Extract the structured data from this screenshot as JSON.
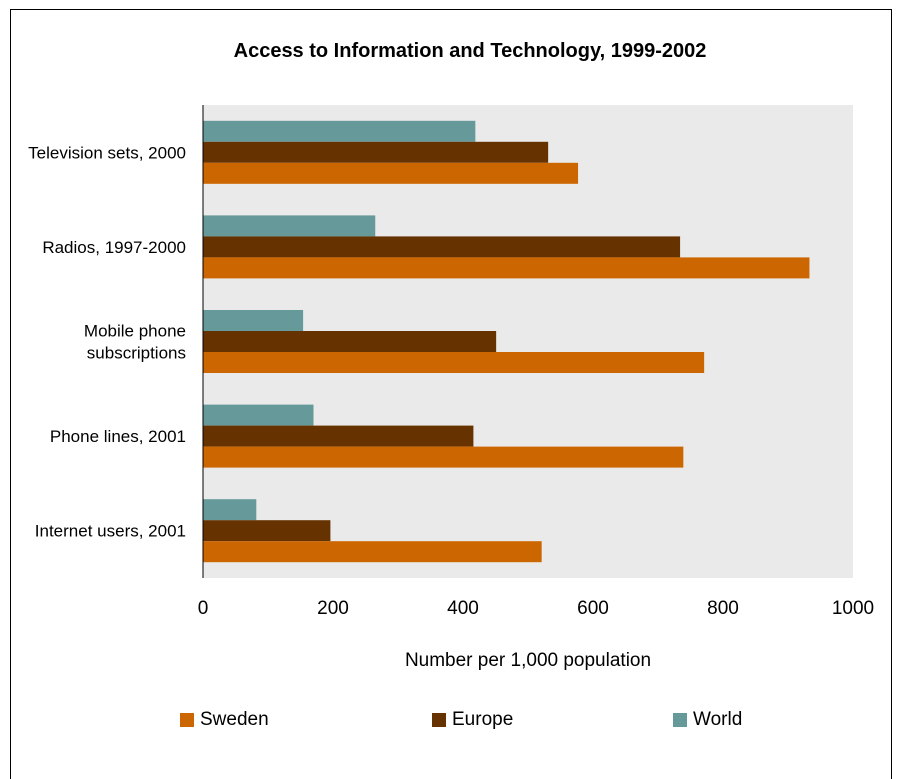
{
  "chart_data": {
    "type": "bar",
    "orientation": "horizontal",
    "title": "Access to Information and Technology, 1999-2002",
    "xlabel": "Number per 1,000 population",
    "ylabel": "",
    "xlim": [
      0,
      1000
    ],
    "xticks": [
      "0",
      "200",
      "400",
      "600",
      "800",
      "1000"
    ],
    "categories": [
      [
        "Television sets, 2000"
      ],
      [
        "Radios, 1997-2000"
      ],
      [
        "Mobile phone",
        "subscriptions"
      ],
      [
        "Phone lines, 2001"
      ],
      [
        "Internet users, 2001"
      ]
    ],
    "series": [
      {
        "name": "World",
        "color": "#669999",
        "values": [
          419,
          265,
          154,
          170,
          82
        ]
      },
      {
        "name": "Europe",
        "color": "#663300",
        "values": [
          531,
          734,
          451,
          416,
          196
        ]
      },
      {
        "name": "Sweden",
        "color": "#cc6600",
        "values": [
          577,
          933,
          771,
          739,
          521
        ]
      }
    ],
    "legend_order": [
      "Sweden",
      "Europe",
      "World"
    ],
    "legend_position": "bottom",
    "plot_background": "#eaeaea",
    "grid": false
  }
}
